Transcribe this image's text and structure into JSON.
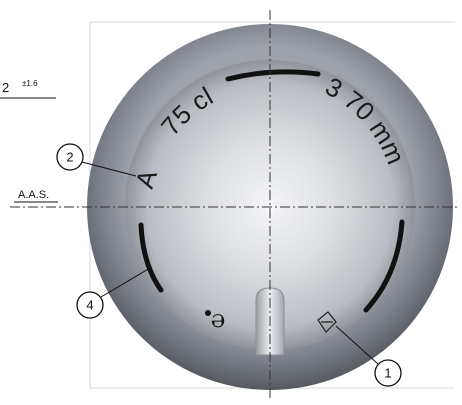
{
  "dimension": {
    "value": "2",
    "tolerance": "±1.6"
  },
  "reference": "A.A.S.",
  "engravings": {
    "mark": "A",
    "volume": "75 cl",
    "diameter": "3 70 mm",
    "estimated": "℮"
  },
  "callouts": [
    "2",
    "4",
    "1"
  ]
}
